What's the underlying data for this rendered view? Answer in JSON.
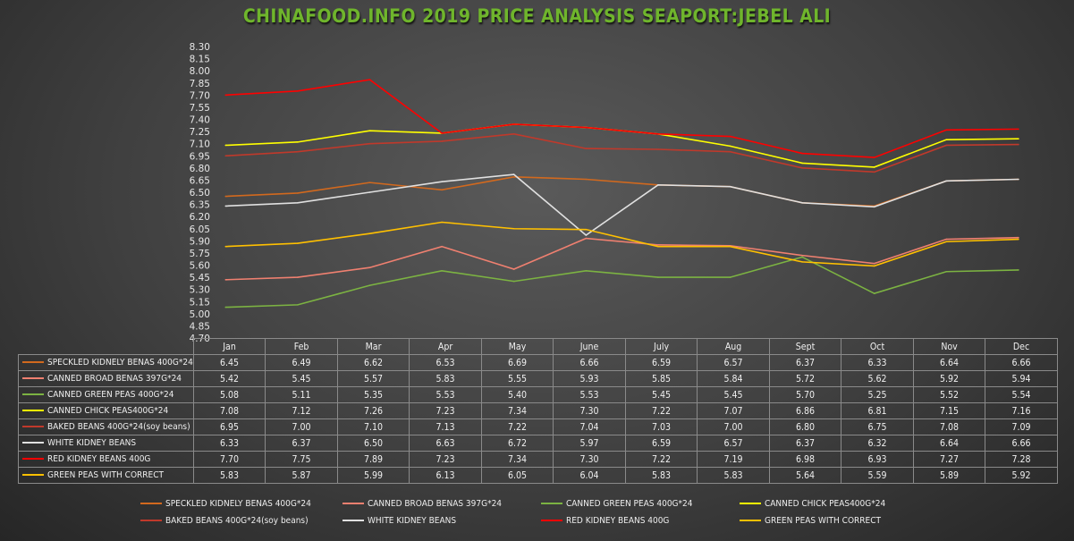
{
  "title": "CHINAFOOD.INFO   2019 PRICE ANALYSIS   SEAPORT:JEBEL ALI",
  "chart_data": {
    "type": "line",
    "title": "CHINAFOOD.INFO   2019 PRICE ANALYSIS   SEAPORT:JEBEL ALI",
    "categories": [
      "Jan",
      "Feb",
      "Mar",
      "Apr",
      "May",
      "June",
      "July",
      "Aug",
      "Sept",
      "Oct",
      "Nov",
      "Dec"
    ],
    "ylim": [
      4.7,
      8.3
    ],
    "ytick_step": 0.15,
    "yticks": [
      "4.70",
      "4.85",
      "5.00",
      "5.15",
      "5.30",
      "5.45",
      "5.60",
      "5.75",
      "5.90",
      "6.05",
      "6.20",
      "6.35",
      "6.50",
      "6.65",
      "6.80",
      "6.95",
      "7.10",
      "7.25",
      "7.40",
      "7.55",
      "7.70",
      "7.85",
      "8.00",
      "8.15",
      "8.30"
    ],
    "legend": "bottom",
    "series": [
      {
        "name": "SPECKLED KIDNELY BENAS 400G*24",
        "color": "#d2691e",
        "values": [
          6.45,
          6.49,
          6.62,
          6.53,
          6.69,
          6.66,
          6.59,
          6.57,
          6.37,
          6.33,
          6.64,
          6.66
        ]
      },
      {
        "name": "CANNED BROAD BENAS 397G*24",
        "color": "#f08070",
        "values": [
          5.42,
          5.45,
          5.57,
          5.83,
          5.55,
          5.93,
          5.85,
          5.84,
          5.72,
          5.62,
          5.92,
          5.94
        ]
      },
      {
        "name": "CANNED GREEN PEAS 400G*24",
        "color": "#7cb342",
        "values": [
          5.08,
          5.11,
          5.35,
          5.53,
          5.4,
          5.53,
          5.45,
          5.45,
          5.7,
          5.25,
          5.52,
          5.54
        ]
      },
      {
        "name": "CANNED CHICK PEAS400G*24",
        "color": "#ffff00",
        "values": [
          7.08,
          7.12,
          7.26,
          7.23,
          7.34,
          7.3,
          7.22,
          7.07,
          6.86,
          6.81,
          7.15,
          7.16
        ]
      },
      {
        "name": "BAKED BEANS 400G*24(soy beans)",
        "color": "#c0392b",
        "values": [
          6.95,
          7.0,
          7.1,
          7.13,
          7.22,
          7.04,
          7.03,
          7.0,
          6.8,
          6.75,
          7.08,
          7.09
        ]
      },
      {
        "name": "WHITE KIDNEY BEANS",
        "color": "#e0e0e0",
        "values": [
          6.33,
          6.37,
          6.5,
          6.63,
          6.72,
          5.97,
          6.59,
          6.57,
          6.37,
          6.32,
          6.64,
          6.66
        ]
      },
      {
        "name": "RED KIDNEY BEANS 400G",
        "color": "#ff0000",
        "values": [
          7.7,
          7.75,
          7.89,
          7.23,
          7.34,
          7.3,
          7.22,
          7.19,
          6.98,
          6.93,
          7.27,
          7.28
        ]
      },
      {
        "name": "GREEN PEAS WITH CORRECT",
        "color": "#ffc000",
        "values": [
          5.83,
          5.87,
          5.99,
          6.13,
          6.05,
          6.04,
          5.83,
          5.83,
          5.64,
          5.59,
          5.89,
          5.92
        ]
      }
    ]
  }
}
